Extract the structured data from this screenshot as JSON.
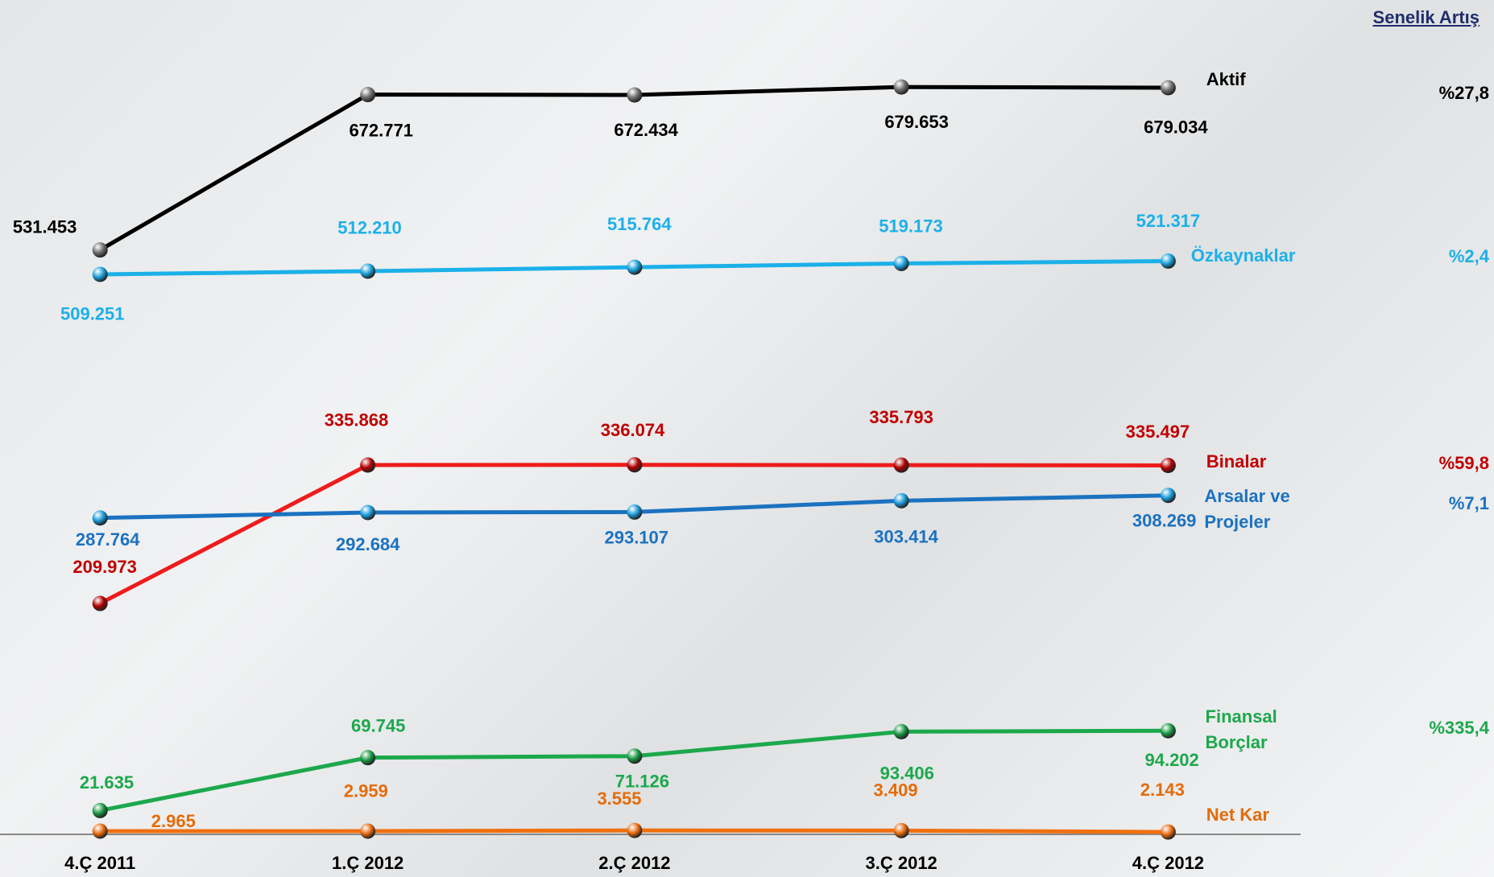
{
  "chart_data": {
    "type": "line",
    "growth_title": "Senelik Artış",
    "categories": [
      "4.Ç 2011",
      "1.Ç 2012",
      "2.Ç 2012",
      "3.Ç 2012",
      "4.Ç 2012"
    ],
    "ylim": [
      0,
      750000
    ],
    "series": [
      {
        "name": "Aktif",
        "color": "#000000",
        "marker_color": "#6e6e6e",
        "label_color": "#000000",
        "values": [
          531453,
          672771,
          672434,
          679653,
          679034
        ],
        "value_labels": [
          "531.453",
          "672.771",
          "672.434",
          "679.653",
          "679.034"
        ],
        "growth": "%27,8"
      },
      {
        "name": "Özkaynaklar",
        "color": "#1cb0e8",
        "marker_color": "#1aa0d8",
        "label_color": "#1cb0e8",
        "values": [
          509251,
          512210,
          515764,
          519173,
          521317
        ],
        "value_labels": [
          "509.251",
          "512.210",
          "515.764",
          "519.173",
          "521.317"
        ],
        "growth": "%2,4"
      },
      {
        "name": "Binalar",
        "color": "#ee1c1c",
        "marker_color": "#b00000",
        "label_color": "#c00000",
        "values": [
          209973,
          335868,
          336074,
          335793,
          335497
        ],
        "value_labels": [
          "209.973",
          "335.868",
          "336.074",
          "335.793",
          "335.497"
        ],
        "growth": "%59,8"
      },
      {
        "name": "Arsalar ve Projeler",
        "color": "#1b72c0",
        "marker_color": "#1a9ad8",
        "label_color": "#1b72c0",
        "values": [
          287764,
          292684,
          293107,
          303414,
          308269
        ],
        "value_labels": [
          "287.764",
          "292.684",
          "293.107",
          "303.414",
          "308.269"
        ],
        "growth": "%7,1"
      },
      {
        "name": "Finansal Borçlar",
        "color": "#1ca84c",
        "marker_color": "#1a9a44",
        "label_color": "#1ca84c",
        "values": [
          21635,
          69745,
          71126,
          93406,
          94202
        ],
        "value_labels": [
          "21.635",
          "69.745",
          "71.126",
          "93.406",
          "94.202"
        ],
        "growth": "%335,4"
      },
      {
        "name": "Net Kar",
        "color": "#f07010",
        "marker_color": "#e86a10",
        "label_color": "#e36c0a",
        "values": [
          2965,
          2959,
          3555,
          3409,
          2143
        ],
        "value_labels": [
          "2.965",
          "2.959",
          "3.555",
          "3.409",
          "2.143"
        ]
      }
    ]
  }
}
